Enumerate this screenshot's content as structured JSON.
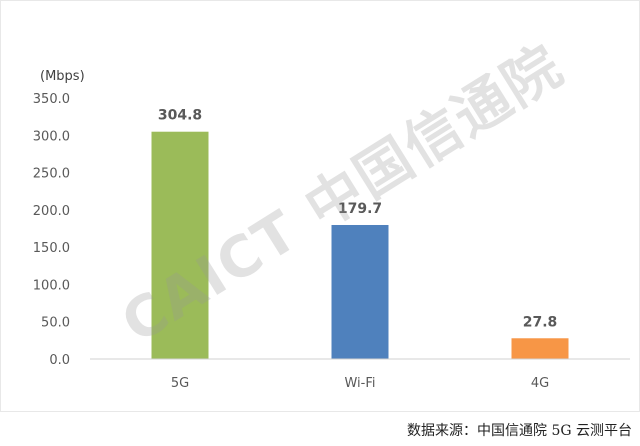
{
  "chart_data": {
    "type": "bar",
    "categories": [
      "5G",
      "Wi-Fi",
      "4G"
    ],
    "values": [
      304.8,
      179.7,
      27.8
    ],
    "value_labels": [
      "304.8",
      "179.7",
      "27.8"
    ],
    "bar_colors": [
      "#9bbb59",
      "#4f81bd",
      "#f79646"
    ],
    "unit": "(Mbps)",
    "ylim": [
      0,
      350
    ],
    "yticks": [
      0,
      50,
      100,
      150,
      200,
      250,
      300,
      350
    ],
    "ytick_labels": [
      "0.0",
      "50.0",
      "100.0",
      "150.0",
      "200.0",
      "250.0",
      "300.0",
      "350.0"
    ],
    "grid": false,
    "legend": "none"
  },
  "watermark": "CAICT 中国信通院",
  "source_note": "数据来源：中国信通院 5G 云测平台"
}
